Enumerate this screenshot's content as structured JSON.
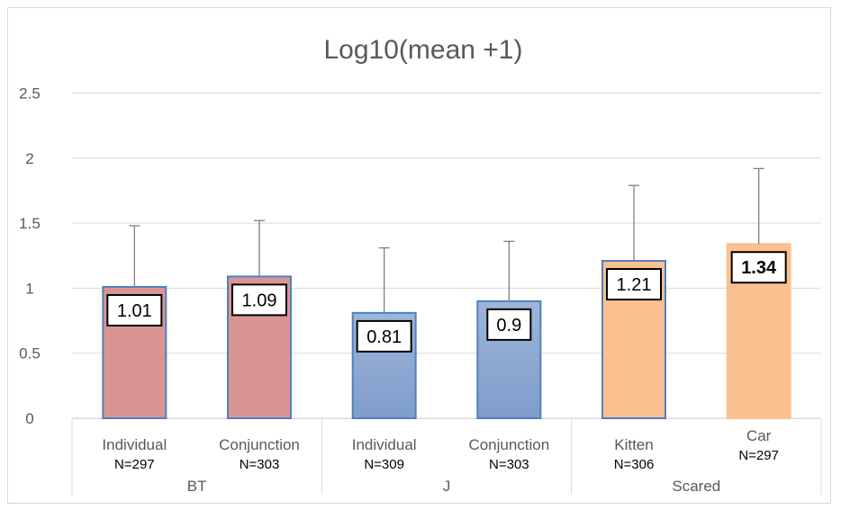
{
  "chart_data": {
    "type": "bar",
    "title": "Log10(mean +1)",
    "xlabel": "",
    "ylabel": "",
    "ylim": [
      0,
      2.5
    ],
    "yticks": [
      "0",
      "0.5",
      "1",
      "1.5",
      "2",
      "2.5"
    ],
    "grid": true,
    "legend": "none",
    "groups": [
      {
        "name": "BT",
        "categories": [
          "Individual",
          "Conjunction"
        ]
      },
      {
        "name": "J",
        "categories": [
          "Individual",
          "Conjunction"
        ]
      },
      {
        "name": "Scared",
        "categories": [
          "Kitten",
          "Car"
        ]
      }
    ],
    "categories": [
      "Individual",
      "Conjunction",
      "Individual",
      "Conjunction",
      "Kitten",
      "Car"
    ],
    "n_labels": [
      "N=297",
      "N=303",
      "N=309",
      "N=303",
      "N=306",
      "N=297"
    ],
    "values": [
      1.01,
      1.09,
      0.81,
      0.9,
      1.21,
      1.34
    ],
    "error_upper": [
      1.48,
      1.52,
      1.31,
      1.36,
      1.79,
      1.92
    ],
    "data_labels": [
      "1.01",
      "1.09",
      "0.81",
      "0.9",
      "1.21",
      "1.34"
    ],
    "colors": [
      "#d99594",
      "#d99594",
      "#95b3d7",
      "#95b3d7",
      "#fac090",
      "#fac090"
    ],
    "border_colors": [
      "#4f81bd",
      "#4f81bd",
      "#4f81bd",
      "#4f81bd",
      "#4f81bd",
      "#fac090"
    ],
    "gradient_fill": [
      false,
      false,
      true,
      true,
      false,
      false
    ],
    "bold_labels": [
      false,
      false,
      false,
      false,
      false,
      true
    ]
  }
}
